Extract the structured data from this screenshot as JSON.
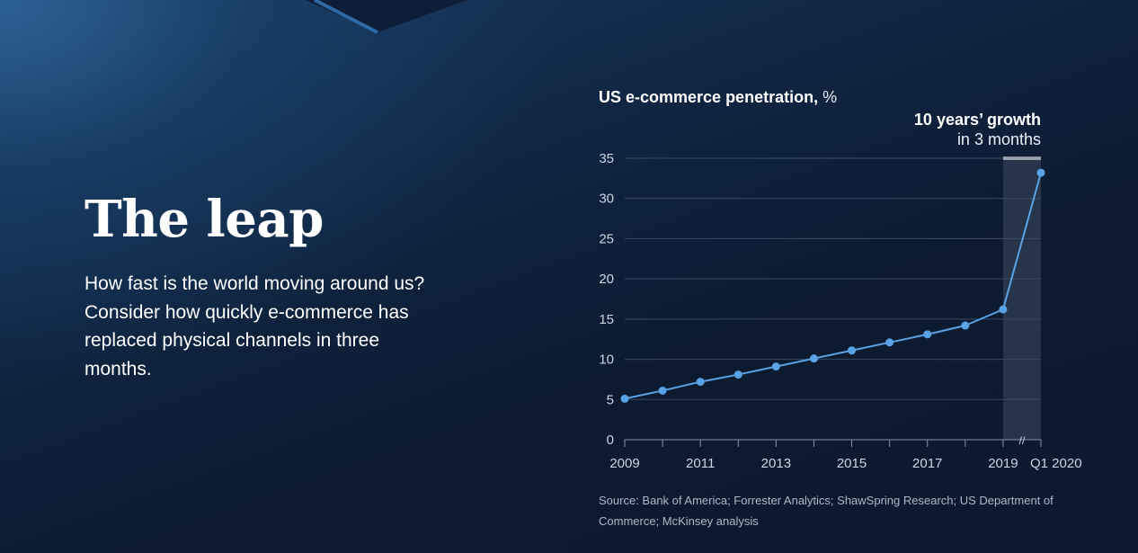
{
  "heading": "The leap",
  "lead": "How fast is the world moving around us? Consider how quickly e-commerce has replaced physical channels in three months.",
  "chart_header": {
    "title": "US e-commerce penetration,",
    "unit": "%"
  },
  "callout": {
    "line1": "10 years’ growth",
    "line2": "in 3 months"
  },
  "source": "Source: Bank of America; Forrester Analytics; ShawSpring Research; US Department of Commerce; McKinsey analysis",
  "colors": {
    "background": "#0c1b30",
    "line": "#5aa2e6",
    "grid": "#3a4a60",
    "highlight": "#2b3a4f"
  },
  "chart_data": {
    "type": "line",
    "title": "US e-commerce penetration, %",
    "xlabel": "",
    "ylabel": "%",
    "ylim": [
      0,
      35
    ],
    "yticks": [
      0,
      5,
      10,
      15,
      20,
      25,
      30,
      35
    ],
    "grid": true,
    "x": [
      "2009",
      "2010",
      "2011",
      "2012",
      "2013",
      "2014",
      "2015",
      "2016",
      "2017",
      "2018",
      "2019",
      "Q1 2020"
    ],
    "xtick_labels": [
      "2009",
      "2011",
      "2013",
      "2015",
      "2017",
      "2019",
      "Q1 2020"
    ],
    "series": [
      {
        "name": "US e-commerce penetration",
        "values": [
          5.1,
          6.1,
          7.2,
          8.1,
          9.1,
          10.1,
          11.1,
          12.1,
          13.1,
          14.2,
          16.2,
          33.2
        ]
      }
    ],
    "highlight": {
      "from": "2019",
      "to": "Q1 2020",
      "label": "10 years’ growth in 3 months"
    },
    "axis_break": "//"
  }
}
